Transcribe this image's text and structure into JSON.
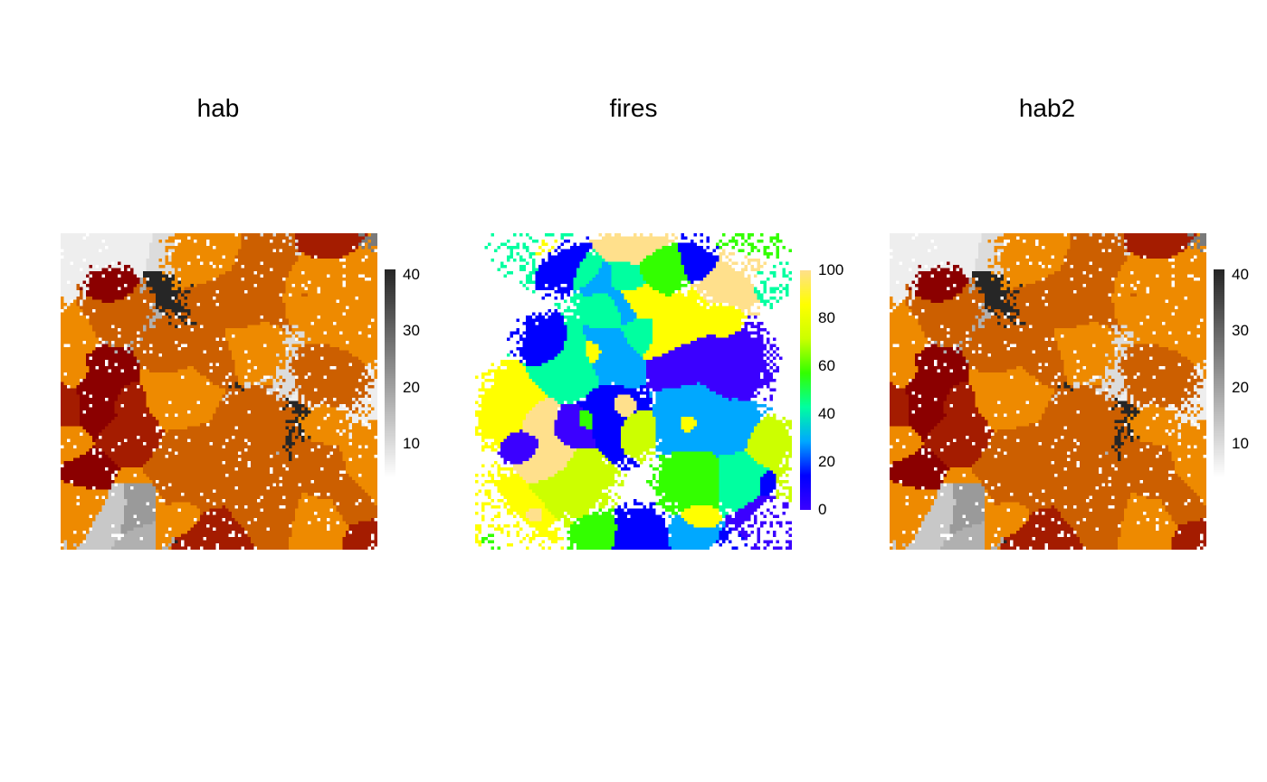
{
  "chart_data": [
    {
      "type": "heatmap",
      "title": "hab",
      "legend": {
        "type": "colorbar",
        "ticks": [
          10,
          20,
          30,
          40
        ],
        "range": [
          4,
          41
        ],
        "palette": "grey"
      },
      "overlay": "fire-scar patches in orange to dark red over grey base",
      "colors": {
        "dark": "#262626",
        "mid": "#8c8c8c",
        "light": "#f2f2f2",
        "orange": "#ee8a00",
        "darkorange": "#cc5f00",
        "red": "#a41c00",
        "maroon": "#8b0000"
      }
    },
    {
      "type": "heatmap",
      "title": "fires",
      "legend": {
        "type": "colorbar",
        "ticks": [
          0,
          20,
          40,
          60,
          80,
          100
        ],
        "range": [
          0,
          100
        ],
        "palette": "rainbow"
      },
      "colors": {
        "c0": "#3b00ff",
        "c20": "#0000ff",
        "c35": "#00a8ff",
        "c45": "#00ffa0",
        "c60": "#33ff00",
        "c75": "#ccff00",
        "c85": "#ffff00",
        "c100": "#ffe08c"
      }
    },
    {
      "type": "heatmap",
      "title": "hab2",
      "legend": {
        "type": "colorbar",
        "ticks": [
          10,
          20,
          30,
          40
        ],
        "range": [
          4,
          41
        ],
        "palette": "grey"
      },
      "overlay": "fire-scar patches in orange to dark red over grey base",
      "colors": {
        "dark": "#262626",
        "mid": "#8c8c8c",
        "light": "#f2f2f2",
        "orange": "#ee8a00",
        "darkorange": "#cc5f00",
        "red": "#a41c00",
        "maroon": "#8b0000"
      }
    }
  ]
}
